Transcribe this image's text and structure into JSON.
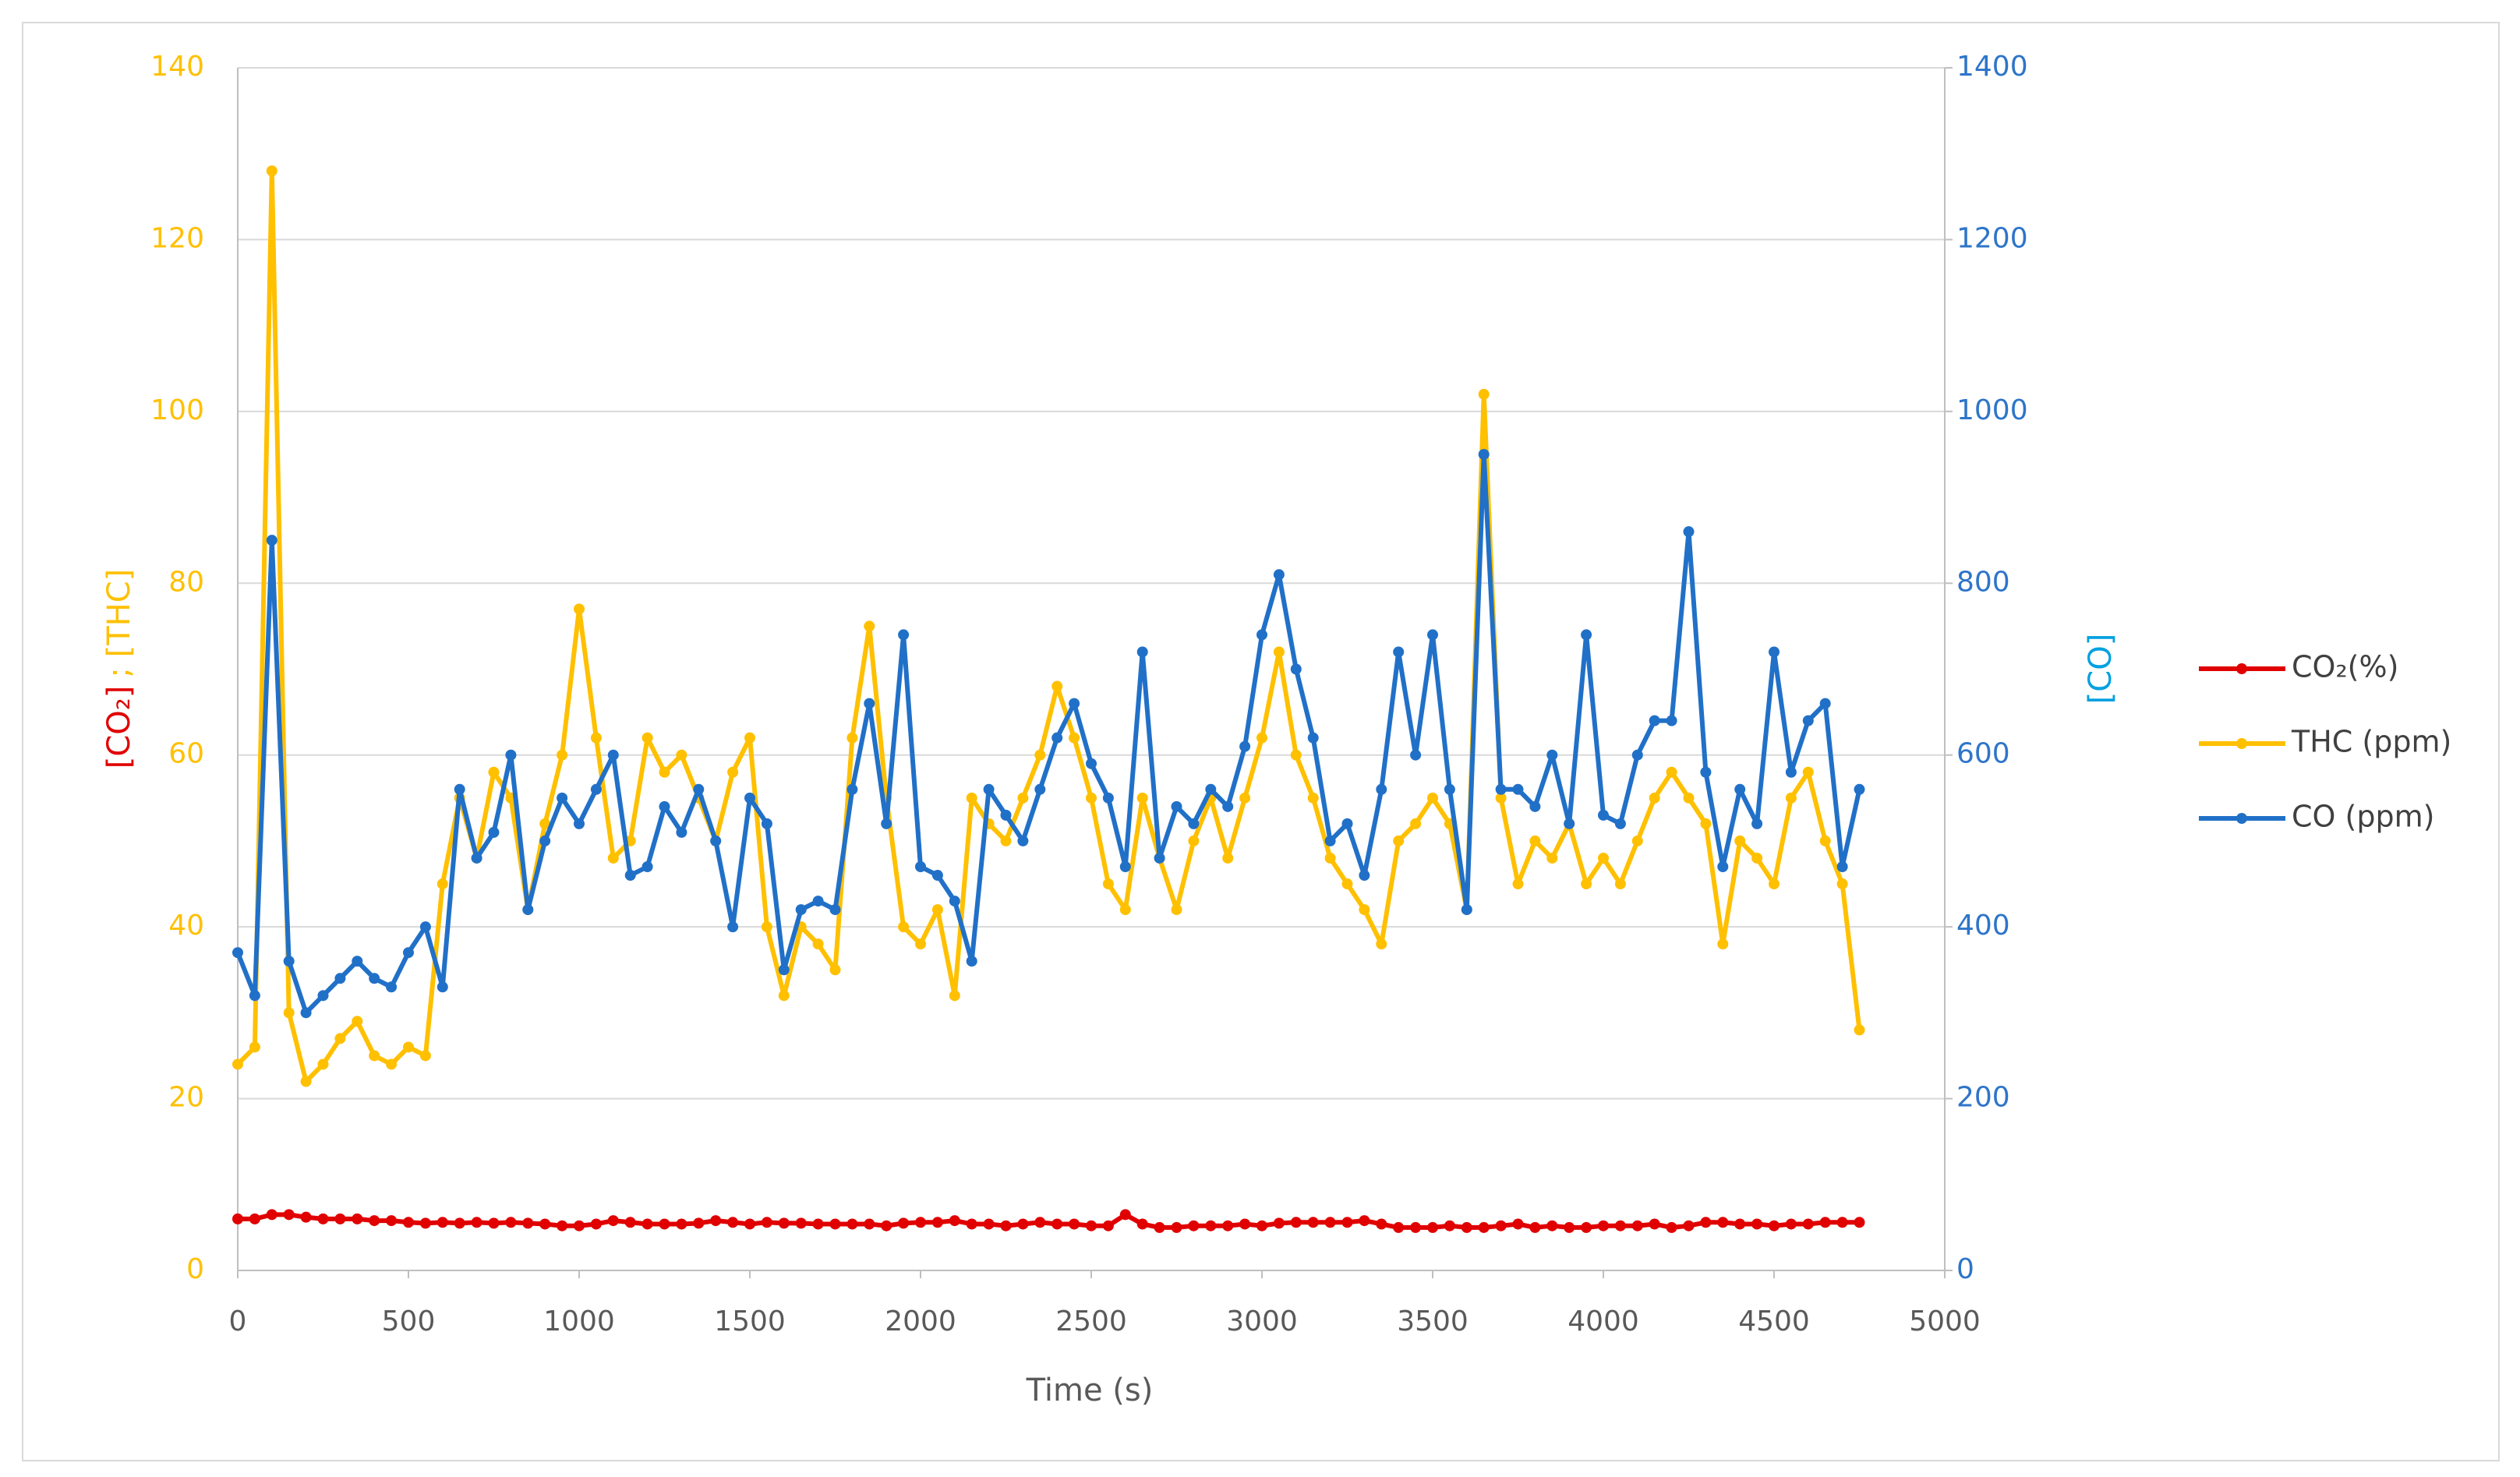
{
  "chart_data": {
    "type": "line",
    "x_label": "Time (s)",
    "y_label_parts": [
      "[CO₂]",
      "; [THC]"
    ],
    "y2_label": "[CO]",
    "x": [
      0,
      50,
      100,
      150,
      200,
      250,
      300,
      350,
      400,
      450,
      500,
      550,
      600,
      650,
      700,
      750,
      800,
      850,
      900,
      950,
      1000,
      1050,
      1100,
      1150,
      1200,
      1250,
      1300,
      1350,
      1400,
      1450,
      1500,
      1550,
      1600,
      1650,
      1700,
      1750,
      1800,
      1850,
      1900,
      1950,
      2000,
      2050,
      2100,
      2150,
      2200,
      2250,
      2300,
      2350,
      2400,
      2450,
      2500,
      2550,
      2600,
      2650,
      2700,
      2750,
      2800,
      2850,
      2900,
      2950,
      3000,
      3050,
      3100,
      3150,
      3200,
      3250,
      3300,
      3350,
      3400,
      3450,
      3500,
      3550,
      3600,
      3650,
      3700,
      3750,
      3800,
      3850,
      3900,
      3950,
      4000,
      4050,
      4100,
      4150,
      4200,
      4250,
      4300,
      4350,
      4400,
      4450,
      4500,
      4550,
      4600,
      4650,
      4700,
      4750
    ],
    "series": [
      {
        "name": "CO₂(%)",
        "color": "#e00000",
        "axis": "y",
        "values": [
          6,
          6,
          6.5,
          6.5,
          6.2,
          6,
          6,
          6,
          5.8,
          5.8,
          5.6,
          5.5,
          5.6,
          5.5,
          5.6,
          5.5,
          5.6,
          5.5,
          5.4,
          5.2,
          5.2,
          5.4,
          5.8,
          5.6,
          5.4,
          5.4,
          5.4,
          5.5,
          5.8,
          5.6,
          5.4,
          5.6,
          5.5,
          5.5,
          5.4,
          5.4,
          5.4,
          5.4,
          5.2,
          5.5,
          5.6,
          5.6,
          5.8,
          5.4,
          5.4,
          5.2,
          5.4,
          5.6,
          5.4,
          5.4,
          5.2,
          5.2,
          6.5,
          5.4,
          5.0,
          5.0,
          5.2,
          5.2,
          5.2,
          5.4,
          5.2,
          5.5,
          5.6,
          5.6,
          5.6,
          5.6,
          5.8,
          5.4,
          5.0,
          5.0,
          5.0,
          5.2,
          5.0,
          5.0,
          5.2,
          5.4,
          5.0,
          5.2,
          5.0,
          5.0,
          5.2,
          5.2,
          5.2,
          5.4,
          5.0,
          5.2,
          5.6,
          5.6,
          5.4,
          5.4,
          5.2,
          5.4,
          5.4,
          5.6,
          5.6,
          5.6
        ]
      },
      {
        "name": "THC (ppm)",
        "color": "#ffc000",
        "axis": "y",
        "values": [
          24,
          26,
          128,
          30,
          22,
          24,
          27,
          29,
          25,
          24,
          26,
          25,
          45,
          55,
          48,
          58,
          55,
          42,
          52,
          60,
          77,
          62,
          48,
          50,
          62,
          58,
          60,
          55,
          50,
          58,
          62,
          40,
          32,
          40,
          38,
          35,
          62,
          75,
          55,
          40,
          38,
          42,
          32,
          55,
          52,
          50,
          55,
          60,
          68,
          62,
          55,
          45,
          42,
          55,
          48,
          42,
          50,
          55,
          48,
          55,
          62,
          72,
          60,
          55,
          48,
          45,
          42,
          38,
          50,
          52,
          55,
          52,
          42,
          102,
          55,
          45,
          50,
          48,
          52,
          45,
          48,
          45,
          50,
          55,
          58,
          55,
          52,
          38,
          50,
          48,
          45,
          55,
          58,
          50,
          45,
          28
        ]
      },
      {
        "name": "CO (ppm)",
        "color": "#2170c8",
        "axis": "y2",
        "values": [
          370,
          320,
          850,
          360,
          300,
          320,
          340,
          360,
          340,
          330,
          370,
          400,
          330,
          560,
          480,
          510,
          600,
          420,
          500,
          550,
          520,
          560,
          600,
          460,
          470,
          540,
          510,
          560,
          500,
          400,
          550,
          520,
          350,
          420,
          430,
          420,
          560,
          660,
          520,
          740,
          470,
          460,
          430,
          360,
          560,
          530,
          500,
          560,
          620,
          660,
          590,
          550,
          470,
          720,
          480,
          540,
          520,
          560,
          540,
          610,
          740,
          810,
          700,
          620,
          500,
          520,
          460,
          560,
          720,
          600,
          740,
          560,
          420,
          950,
          560,
          560,
          540,
          600,
          520,
          740,
          530,
          520,
          600,
          640,
          640,
          860,
          580,
          470,
          560,
          520,
          720,
          580,
          640,
          660,
          470,
          560
        ]
      }
    ],
    "xlim": [
      0,
      5000
    ],
    "xticks": [
      0,
      500,
      1000,
      1500,
      2000,
      2500,
      3000,
      3500,
      4000,
      4500,
      5000
    ],
    "ylim": [
      0,
      140
    ],
    "yticks": [
      0,
      20,
      40,
      60,
      80,
      100,
      120,
      140
    ],
    "y2lim": [
      0,
      1400
    ],
    "y2ticks": [
      0,
      200,
      400,
      600,
      800,
      1000,
      1200,
      1400
    ],
    "grid": true,
    "legend": "right"
  }
}
